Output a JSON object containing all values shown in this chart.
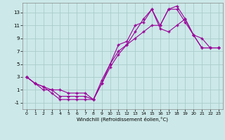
{
  "xlabel": "Windchill (Refroidissement éolien,°C)",
  "bg_color": "#cce8e8",
  "grid_color": "#aacccc",
  "line_color": "#990099",
  "line1_x": [
    0,
    1,
    2,
    3,
    4,
    5,
    6,
    7,
    8,
    9,
    10,
    11,
    12,
    13,
    14,
    15,
    16,
    17,
    18,
    19,
    20,
    21,
    22,
    23
  ],
  "line1_y": [
    3,
    2,
    1.5,
    1,
    1,
    0.5,
    0.5,
    0.5,
    -0.5,
    2.5,
    5,
    7,
    8,
    9,
    10,
    11,
    11,
    13.5,
    14,
    12,
    9.5,
    7.5,
    7.5,
    7.5
  ],
  "line2_x": [
    0,
    1,
    2,
    3,
    4,
    5,
    6,
    7,
    8,
    9,
    10,
    11,
    12,
    13,
    14,
    15,
    16,
    17,
    18,
    19,
    20,
    21,
    22,
    23
  ],
  "line2_y": [
    3,
    2,
    1.5,
    0.5,
    -0.5,
    -0.5,
    -0.5,
    -0.5,
    -0.5,
    2,
    4.5,
    6.5,
    8,
    10,
    12,
    13.5,
    11,
    13.5,
    13.5,
    11.5,
    9.5,
    9,
    7.5,
    7.5
  ],
  "line3_x": [
    0,
    1,
    2,
    3,
    4,
    5,
    6,
    7,
    8,
    9,
    10,
    11,
    12,
    13,
    14,
    15,
    16,
    17,
    18,
    19,
    20,
    21,
    22,
    23
  ],
  "line3_y": [
    3,
    2,
    1,
    1,
    0,
    0,
    0,
    0,
    -0.5,
    2,
    5,
    8,
    8.5,
    11,
    11.5,
    13.5,
    10.5,
    10,
    11,
    12,
    9.5,
    7.5,
    7.5,
    7.5
  ],
  "xlim": [
    -0.5,
    23.5
  ],
  "ylim": [
    -2,
    14.5
  ],
  "yticks": [
    -1,
    1,
    3,
    5,
    7,
    9,
    11,
    13
  ],
  "xticks": [
    0,
    1,
    2,
    3,
    4,
    5,
    6,
    7,
    8,
    9,
    10,
    11,
    12,
    13,
    14,
    15,
    16,
    17,
    18,
    19,
    20,
    21,
    22,
    23
  ]
}
